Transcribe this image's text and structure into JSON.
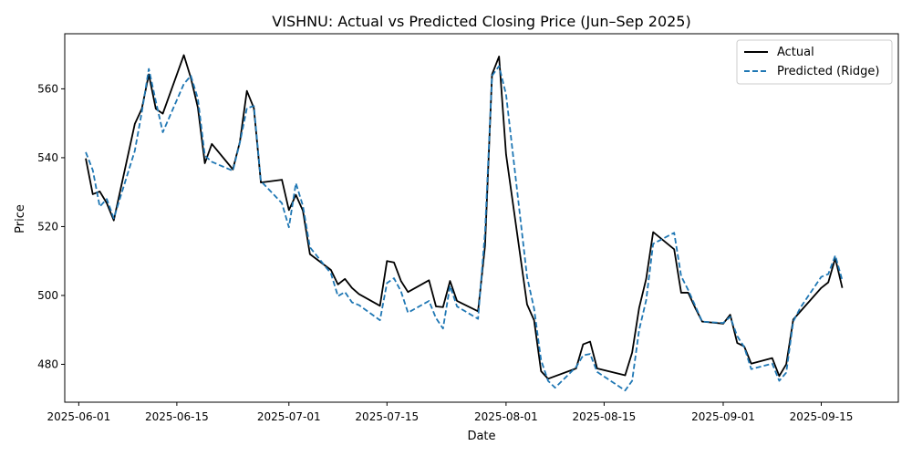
{
  "chart_data": {
    "type": "line",
    "title": "VISHNU: Actual vs Predicted Closing Price (Jun–Sep 2025)",
    "xlabel": "Date",
    "ylabel": "Price",
    "x_ticks": [
      "2025-06-01",
      "2025-06-15",
      "2025-07-01",
      "2025-07-15",
      "2025-08-01",
      "2025-08-15",
      "2025-09-01",
      "2025-09-15"
    ],
    "y_ticks": [
      480,
      500,
      520,
      540,
      560
    ],
    "xlim": [
      "2025-05-30",
      "2025-09-26"
    ],
    "ylim": [
      469,
      576
    ],
    "grid": false,
    "legend": "top-right",
    "series": [
      {
        "name": "Actual",
        "color": "#000000",
        "style": "solid",
        "points": [
          [
            "2025-06-02",
            539.8
          ],
          [
            "2025-06-03",
            529.4
          ],
          [
            "2025-06-04",
            530.2
          ],
          [
            "2025-06-05",
            526.8
          ],
          [
            "2025-06-06",
            521.8
          ],
          [
            "2025-06-09",
            549.8
          ],
          [
            "2025-06-10",
            554.2
          ],
          [
            "2025-06-11",
            564.2
          ],
          [
            "2025-06-12",
            554.2
          ],
          [
            "2025-06-13",
            552.8
          ],
          [
            "2025-06-16",
            569.8
          ],
          [
            "2025-06-17",
            563.2
          ],
          [
            "2025-06-18",
            554.6
          ],
          [
            "2025-06-19",
            538.4
          ],
          [
            "2025-06-20",
            544.0
          ],
          [
            "2025-06-23",
            536.6
          ],
          [
            "2025-06-24",
            544.6
          ],
          [
            "2025-06-25",
            559.4
          ],
          [
            "2025-06-26",
            554.4
          ],
          [
            "2025-06-27",
            532.8
          ],
          [
            "2025-06-30",
            533.6
          ],
          [
            "2025-07-01",
            524.8
          ],
          [
            "2025-07-02",
            529.2
          ],
          [
            "2025-07-03",
            524.6
          ],
          [
            "2025-07-04",
            512.0
          ],
          [
            "2025-07-07",
            507.4
          ],
          [
            "2025-07-08",
            503.2
          ],
          [
            "2025-07-09",
            504.8
          ],
          [
            "2025-07-10",
            502.2
          ],
          [
            "2025-07-11",
            500.4
          ],
          [
            "2025-07-14",
            497.0
          ],
          [
            "2025-07-15",
            510.0
          ],
          [
            "2025-07-16",
            509.6
          ],
          [
            "2025-07-17",
            504.2
          ],
          [
            "2025-07-18",
            501.0
          ],
          [
            "2025-07-21",
            504.4
          ],
          [
            "2025-07-22",
            496.8
          ],
          [
            "2025-07-23",
            496.6
          ],
          [
            "2025-07-24",
            504.2
          ],
          [
            "2025-07-25",
            498.4
          ],
          [
            "2025-07-28",
            495.4
          ],
          [
            "2025-07-29",
            514.4
          ],
          [
            "2025-07-30",
            564.2
          ],
          [
            "2025-07-31",
            569.4
          ],
          [
            "2025-08-01",
            541.0
          ],
          [
            "2025-08-04",
            497.4
          ],
          [
            "2025-08-05",
            492.8
          ],
          [
            "2025-08-06",
            478.0
          ],
          [
            "2025-08-07",
            475.8
          ],
          [
            "2025-08-11",
            478.8
          ],
          [
            "2025-08-12",
            485.8
          ],
          [
            "2025-08-13",
            486.6
          ],
          [
            "2025-08-14",
            478.8
          ],
          [
            "2025-08-18",
            476.8
          ],
          [
            "2025-08-19",
            483.4
          ],
          [
            "2025-08-20",
            496.4
          ],
          [
            "2025-08-21",
            504.8
          ],
          [
            "2025-08-22",
            518.4
          ],
          [
            "2025-08-25",
            513.4
          ],
          [
            "2025-08-26",
            500.8
          ],
          [
            "2025-08-27",
            500.8
          ],
          [
            "2025-08-28",
            496.4
          ],
          [
            "2025-08-29",
            492.4
          ],
          [
            "2025-09-01",
            491.8
          ],
          [
            "2025-09-02",
            494.4
          ],
          [
            "2025-09-03",
            486.2
          ],
          [
            "2025-09-04",
            485.2
          ],
          [
            "2025-09-05",
            480.2
          ],
          [
            "2025-09-08",
            481.8
          ],
          [
            "2025-09-09",
            476.6
          ],
          [
            "2025-09-10",
            480.0
          ],
          [
            "2025-09-11",
            493.0
          ],
          [
            "2025-09-15",
            502.2
          ],
          [
            "2025-09-16",
            503.8
          ],
          [
            "2025-09-17",
            510.8
          ],
          [
            "2025-09-18",
            502.2
          ]
        ]
      },
      {
        "name": "Predicted (Ridge)",
        "color": "#1f77b4",
        "style": "dashed",
        "points": [
          [
            "2025-06-02",
            541.6
          ],
          [
            "2025-06-03",
            536.4
          ],
          [
            "2025-06-04",
            525.8
          ],
          [
            "2025-06-05",
            528.0
          ],
          [
            "2025-06-06",
            522.4
          ],
          [
            "2025-06-09",
            542.0
          ],
          [
            "2025-06-10",
            553.2
          ],
          [
            "2025-06-11",
            565.8
          ],
          [
            "2025-06-12",
            556.4
          ],
          [
            "2025-06-13",
            547.4
          ],
          [
            "2025-06-16",
            561.4
          ],
          [
            "2025-06-17",
            563.8
          ],
          [
            "2025-06-18",
            557.2
          ],
          [
            "2025-06-19",
            540.6
          ],
          [
            "2025-06-20",
            538.8
          ],
          [
            "2025-06-23",
            536.2
          ],
          [
            "2025-06-24",
            544.4
          ],
          [
            "2025-06-25",
            554.4
          ],
          [
            "2025-06-26",
            555.0
          ],
          [
            "2025-06-27",
            533.2
          ],
          [
            "2025-06-30",
            526.8
          ],
          [
            "2025-07-01",
            519.8
          ],
          [
            "2025-07-02",
            532.6
          ],
          [
            "2025-07-03",
            526.0
          ],
          [
            "2025-07-04",
            514.0
          ],
          [
            "2025-07-07",
            506.4
          ],
          [
            "2025-07-08",
            499.8
          ],
          [
            "2025-07-09",
            501.0
          ],
          [
            "2025-07-10",
            498.0
          ],
          [
            "2025-07-11",
            497.2
          ],
          [
            "2025-07-14",
            492.8
          ],
          [
            "2025-07-15",
            503.6
          ],
          [
            "2025-07-16",
            505.0
          ],
          [
            "2025-07-17",
            501.2
          ],
          [
            "2025-07-18",
            495.0
          ],
          [
            "2025-07-21",
            498.4
          ],
          [
            "2025-07-22",
            493.4
          ],
          [
            "2025-07-23",
            490.4
          ],
          [
            "2025-07-24",
            502.8
          ],
          [
            "2025-07-25",
            496.8
          ],
          [
            "2025-07-28",
            493.2
          ],
          [
            "2025-07-29",
            518.4
          ],
          [
            "2025-07-30",
            563.8
          ],
          [
            "2025-07-31",
            566.6
          ],
          [
            "2025-08-01",
            558.4
          ],
          [
            "2025-08-04",
            505.4
          ],
          [
            "2025-08-05",
            496.2
          ],
          [
            "2025-08-06",
            481.2
          ],
          [
            "2025-08-07",
            475.2
          ],
          [
            "2025-08-08",
            473.2
          ],
          [
            "2025-08-11",
            479.2
          ],
          [
            "2025-08-12",
            482.6
          ],
          [
            "2025-08-13",
            483.0
          ],
          [
            "2025-08-14",
            477.8
          ],
          [
            "2025-08-18",
            472.4
          ],
          [
            "2025-08-19",
            475.2
          ],
          [
            "2025-08-20",
            490.0
          ],
          [
            "2025-08-21",
            498.6
          ],
          [
            "2025-08-22",
            515.0
          ],
          [
            "2025-08-25",
            518.2
          ],
          [
            "2025-08-26",
            505.6
          ],
          [
            "2025-08-27",
            501.6
          ],
          [
            "2025-08-28",
            497.0
          ],
          [
            "2025-08-29",
            492.4
          ],
          [
            "2025-09-01",
            492.0
          ],
          [
            "2025-09-02",
            493.8
          ],
          [
            "2025-09-03",
            488.2
          ],
          [
            "2025-09-04",
            485.0
          ],
          [
            "2025-09-05",
            478.6
          ],
          [
            "2025-09-08",
            480.2
          ],
          [
            "2025-09-09",
            475.2
          ],
          [
            "2025-09-10",
            477.6
          ],
          [
            "2025-09-11",
            492.4
          ],
          [
            "2025-09-12",
            496.4
          ],
          [
            "2025-09-15",
            505.4
          ],
          [
            "2025-09-16",
            506.2
          ],
          [
            "2025-09-17",
            511.6
          ],
          [
            "2025-09-18",
            504.4
          ]
        ]
      }
    ]
  }
}
